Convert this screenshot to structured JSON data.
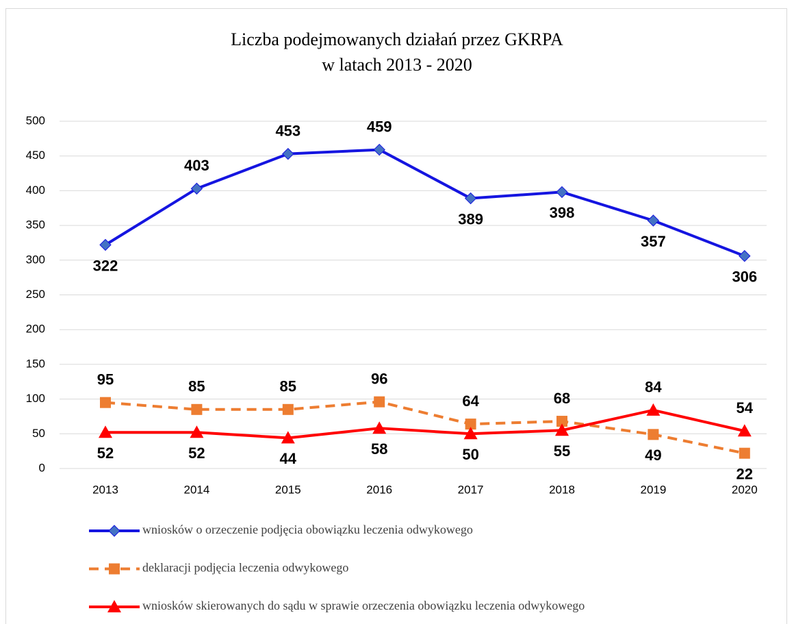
{
  "chart_data": {
    "type": "line",
    "title": [
      "Liczba podejmowanych działań przez GKRPA",
      "w latach 2013 - 2020"
    ],
    "categories": [
      "2013",
      "2014",
      "2015",
      "2016",
      "2017",
      "2018",
      "2019",
      "2020"
    ],
    "series": [
      {
        "name": "wniosków o orzeczenie podjęcia obowiązku leczenia odwykowego",
        "color": "#1515e0",
        "marker_color": "#4472c4",
        "marker": "diamond",
        "dash": false,
        "values": [
          322,
          403,
          453,
          459,
          389,
          398,
          357,
          306
        ]
      },
      {
        "name": "deklaracji podjęcia leczenia odwykowego",
        "color": "#ed7d31",
        "marker_color": "#ed7d31",
        "marker": "square",
        "dash": true,
        "values": [
          95,
          85,
          85,
          96,
          64,
          68,
          49,
          22
        ]
      },
      {
        "name": "wniosków skierowanych do sądu w sprawie orzeczenia obowiązku leczenia odwykowego",
        "color": "#ff0000",
        "marker_color": "#ff0000",
        "marker": "triangle",
        "dash": false,
        "values": [
          52,
          52,
          44,
          58,
          50,
          55,
          84,
          54
        ]
      }
    ],
    "ylim": [
      0,
      500
    ],
    "yticks": [
      0,
      50,
      100,
      150,
      200,
      250,
      300,
      350,
      400,
      450,
      500
    ],
    "grid": true,
    "legend": "bottom"
  }
}
